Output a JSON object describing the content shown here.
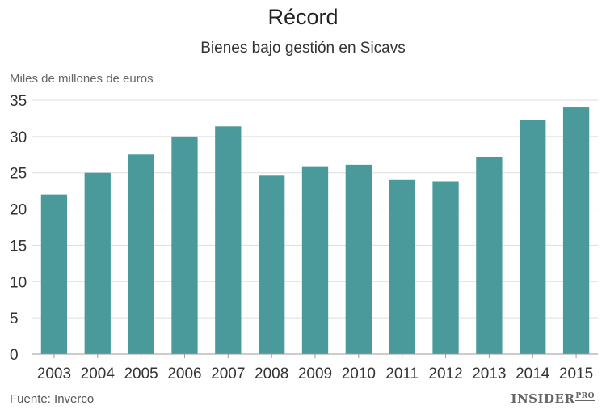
{
  "chart_data": {
    "type": "bar",
    "title": "Récord",
    "subtitle": "Bienes bajo gestión en Sicavs",
    "ylabel": "Miles de millones de euros",
    "categories": [
      "2003",
      "2004",
      "2005",
      "2006",
      "2007",
      "2008",
      "2009",
      "2010",
      "2011",
      "2012",
      "2013",
      "2014",
      "2015"
    ],
    "values": [
      22.0,
      25.0,
      27.5,
      30.0,
      31.4,
      24.6,
      25.9,
      26.1,
      24.1,
      23.8,
      27.2,
      32.3,
      34.1
    ],
    "ylim": [
      0,
      35
    ],
    "yticks": [
      0,
      5,
      10,
      15,
      20,
      25,
      30,
      35
    ],
    "grid": true,
    "bar_color": "#4a9a9b"
  },
  "footer": {
    "source": "Fuente: Inverco",
    "logo_main": "INSIDER",
    "logo_sub": "PRO"
  }
}
